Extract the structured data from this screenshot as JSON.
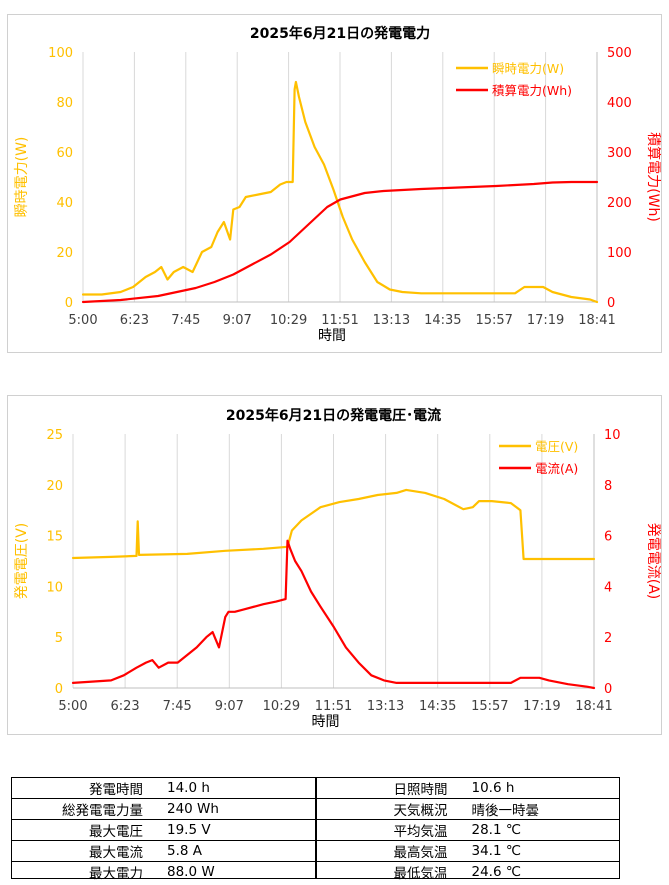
{
  "chart_data": [
    {
      "type": "line",
      "title": "2025年6月21日の発電電力",
      "xlabel": "時間",
      "ylabel_left": "瞬時電力(W)",
      "ylabel_right": "積算電力(Wh)",
      "x_ticks": [
        "5:00",
        "6:23",
        "7:45",
        "9:07",
        "10:29",
        "11:51",
        "13:13",
        "14:35",
        "15:57",
        "17:19",
        "18:41"
      ],
      "x_range": [
        "5:00",
        "18:41"
      ],
      "ylim_left": [
        0,
        100
      ],
      "ylim_right": [
        0,
        500
      ],
      "y_ticks_left": [
        "0",
        "20",
        "40",
        "60",
        "80",
        "100"
      ],
      "y_ticks_right": [
        "0",
        "100",
        "200",
        "300",
        "400",
        "500"
      ],
      "grid": "vertical",
      "legend_position": "top-right",
      "series": [
        {
          "name": "瞬時電力(W)",
          "axis": "left",
          "color": "#FFC000",
          "points": [
            [
              "5:00",
              3
            ],
            [
              "5:30",
              3
            ],
            [
              "6:00",
              4
            ],
            [
              "6:20",
              6
            ],
            [
              "6:40",
              10
            ],
            [
              "6:55",
              12
            ],
            [
              "7:05",
              14
            ],
            [
              "7:15",
              9
            ],
            [
              "7:25",
              12
            ],
            [
              "7:40",
              14
            ],
            [
              "7:55",
              12
            ],
            [
              "8:10",
              20
            ],
            [
              "8:25",
              22
            ],
            [
              "8:35",
              28
            ],
            [
              "8:45",
              32
            ],
            [
              "8:55",
              25
            ],
            [
              "9:00",
              37
            ],
            [
              "9:10",
              38
            ],
            [
              "9:20",
              42
            ],
            [
              "9:40",
              43
            ],
            [
              "10:00",
              44
            ],
            [
              "10:15",
              47
            ],
            [
              "10:25",
              48
            ],
            [
              "10:35",
              48
            ],
            [
              "10:38",
              85
            ],
            [
              "10:40",
              88
            ],
            [
              "10:45",
              82
            ],
            [
              "10:55",
              72
            ],
            [
              "11:10",
              62
            ],
            [
              "11:25",
              55
            ],
            [
              "11:40",
              45
            ],
            [
              "11:55",
              34
            ],
            [
              "12:10",
              25
            ],
            [
              "12:30",
              16
            ],
            [
              "12:50",
              8
            ],
            [
              "13:10",
              5
            ],
            [
              "13:30",
              4
            ],
            [
              "14:00",
              3.5
            ],
            [
              "15:00",
              3.5
            ],
            [
              "16:00",
              3.5
            ],
            [
              "16:30",
              3.5
            ],
            [
              "16:45",
              6
            ],
            [
              "17:15",
              6
            ],
            [
              "17:30",
              4
            ],
            [
              "18:00",
              2
            ],
            [
              "18:30",
              1
            ],
            [
              "18:41",
              0
            ]
          ]
        },
        {
          "name": "積算電力(Wh)",
          "axis": "right",
          "color": "#FF0000",
          "points": [
            [
              "5:00",
              0
            ],
            [
              "6:00",
              4
            ],
            [
              "7:00",
              12
            ],
            [
              "8:00",
              28
            ],
            [
              "8:30",
              40
            ],
            [
              "9:00",
              55
            ],
            [
              "9:30",
              75
            ],
            [
              "10:00",
              95
            ],
            [
              "10:30",
              120
            ],
            [
              "11:00",
              155
            ],
            [
              "11:30",
              190
            ],
            [
              "11:51",
              205
            ],
            [
              "12:30",
              218
            ],
            [
              "13:00",
              222
            ],
            [
              "14:00",
              226
            ],
            [
              "15:00",
              229
            ],
            [
              "16:00",
              232
            ],
            [
              "17:00",
              236
            ],
            [
              "17:30",
              239
            ],
            [
              "18:00",
              240
            ],
            [
              "18:41",
              240
            ]
          ]
        }
      ]
    },
    {
      "type": "line",
      "title": "2025年6月21日の発電電圧･電流",
      "xlabel": "時間",
      "ylabel_left": "発電電圧(V)",
      "ylabel_right": "発電電流(A)",
      "x_ticks": [
        "5:00",
        "6:23",
        "7:45",
        "9:07",
        "10:29",
        "11:51",
        "13:13",
        "14:35",
        "15:57",
        "17:19",
        "18:41"
      ],
      "x_range": [
        "5:00",
        "18:41"
      ],
      "ylim_left": [
        0,
        25
      ],
      "ylim_right": [
        0,
        10
      ],
      "y_ticks_left": [
        "0",
        "5",
        "10",
        "15",
        "20",
        "25"
      ],
      "y_ticks_right": [
        "0",
        "2",
        "4",
        "6",
        "8",
        "10"
      ],
      "grid": "vertical",
      "legend_position": "top-right",
      "series": [
        {
          "name": "電圧(V)",
          "axis": "left",
          "color": "#FFC000",
          "points": [
            [
              "5:00",
              12.8
            ],
            [
              "6:00",
              12.9
            ],
            [
              "6:40",
              13.0
            ],
            [
              "6:42",
              16.4
            ],
            [
              "6:44",
              13.1
            ],
            [
              "8:00",
              13.2
            ],
            [
              "9:00",
              13.5
            ],
            [
              "10:00",
              13.7
            ],
            [
              "10:38",
              13.9
            ],
            [
              "10:45",
              15.5
            ],
            [
              "11:00",
              16.5
            ],
            [
              "11:30",
              17.8
            ],
            [
              "12:00",
              18.3
            ],
            [
              "12:30",
              18.6
            ],
            [
              "13:00",
              19.0
            ],
            [
              "13:30",
              19.2
            ],
            [
              "13:45",
              19.5
            ],
            [
              "14:15",
              19.2
            ],
            [
              "14:45",
              18.6
            ],
            [
              "15:15",
              17.6
            ],
            [
              "15:30",
              17.8
            ],
            [
              "15:40",
              18.4
            ],
            [
              "16:00",
              18.4
            ],
            [
              "16:30",
              18.2
            ],
            [
              "16:45",
              17.5
            ],
            [
              "16:50",
              12.7
            ],
            [
              "17:30",
              12.7
            ],
            [
              "18:41",
              12.7
            ]
          ]
        },
        {
          "name": "電流(A)",
          "axis": "right",
          "color": "#FF0000",
          "points": [
            [
              "5:00",
              0.2
            ],
            [
              "6:00",
              0.3
            ],
            [
              "6:20",
              0.5
            ],
            [
              "6:40",
              0.8
            ],
            [
              "6:55",
              1.0
            ],
            [
              "7:05",
              1.1
            ],
            [
              "7:15",
              0.8
            ],
            [
              "7:30",
              1.0
            ],
            [
              "7:45",
              1.0
            ],
            [
              "8:00",
              1.3
            ],
            [
              "8:15",
              1.6
            ],
            [
              "8:30",
              2.0
            ],
            [
              "8:40",
              2.2
            ],
            [
              "8:50",
              1.6
            ],
            [
              "9:00",
              2.8
            ],
            [
              "9:05",
              3.0
            ],
            [
              "9:15",
              3.0
            ],
            [
              "9:30",
              3.1
            ],
            [
              "10:00",
              3.3
            ],
            [
              "10:20",
              3.4
            ],
            [
              "10:35",
              3.5
            ],
            [
              "10:38",
              5.8
            ],
            [
              "10:42",
              5.5
            ],
            [
              "10:50",
              5.0
            ],
            [
              "11:00",
              4.6
            ],
            [
              "11:15",
              3.8
            ],
            [
              "11:30",
              3.2
            ],
            [
              "11:51",
              2.4
            ],
            [
              "12:10",
              1.6
            ],
            [
              "12:30",
              1.0
            ],
            [
              "12:50",
              0.5
            ],
            [
              "13:10",
              0.3
            ],
            [
              "13:30",
              0.2
            ],
            [
              "15:00",
              0.2
            ],
            [
              "16:30",
              0.2
            ],
            [
              "16:45",
              0.4
            ],
            [
              "17:15",
              0.4
            ],
            [
              "17:30",
              0.3
            ],
            [
              "18:00",
              0.15
            ],
            [
              "18:30",
              0.05
            ],
            [
              "18:41",
              0
            ]
          ]
        }
      ]
    }
  ],
  "summary": {
    "left": [
      {
        "label": "発電時間",
        "value": "14.0  h"
      },
      {
        "label": "総発電電力量",
        "value": "240  Wh"
      },
      {
        "label": "最大電圧",
        "value": "19.5  V"
      },
      {
        "label": "最大電流",
        "value": "5.8  A"
      },
      {
        "label": "最大電力",
        "value": "88.0  W"
      }
    ],
    "right": [
      {
        "label": "日照時間",
        "value": "10.6  h"
      },
      {
        "label": "天気概況",
        "value": "晴後一時曇"
      },
      {
        "label": "平均気温",
        "value": "28.1  ℃"
      },
      {
        "label": "最高気温",
        "value": "34.1  ℃"
      },
      {
        "label": "最低気温",
        "value": "24.6  ℃"
      }
    ]
  }
}
